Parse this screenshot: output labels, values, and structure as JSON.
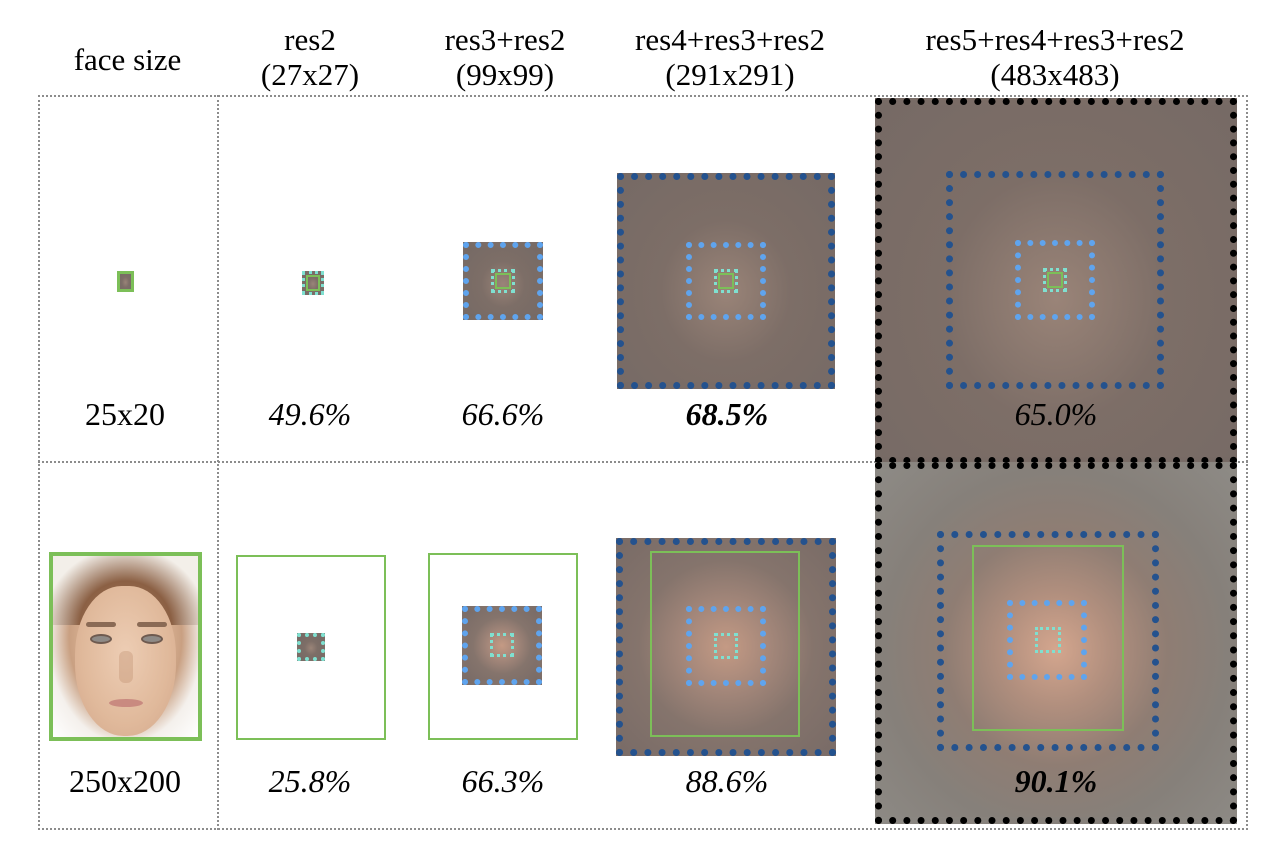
{
  "headers": {
    "face_size": "face size",
    "res2": {
      "name": "res2",
      "size": "(27x27)"
    },
    "res3": {
      "name": "res3+res2",
      "size": "(99x99)"
    },
    "res4": {
      "name": "res4+res3+res2",
      "size": "(291x291)"
    },
    "res5": {
      "name": "res5+res4+res3+res2",
      "size": "(483x483)"
    }
  },
  "rows": [
    {
      "face_size": "25x20",
      "res2": "49.6%",
      "res3": "66.6%",
      "res4": "68.5%",
      "res5": "65.0%",
      "best": "res4"
    },
    {
      "face_size": "250x200",
      "res2": "25.8%",
      "res3": "66.3%",
      "res4": "88.6%",
      "res5": "90.1%",
      "best": "res5"
    }
  ],
  "colors": {
    "res2_box": "#7fe0d0",
    "res3_box": "#5fa4ee",
    "res4_box": "#24528e",
    "res5_box": "#000000",
    "face_box": "#7cbf58"
  }
}
